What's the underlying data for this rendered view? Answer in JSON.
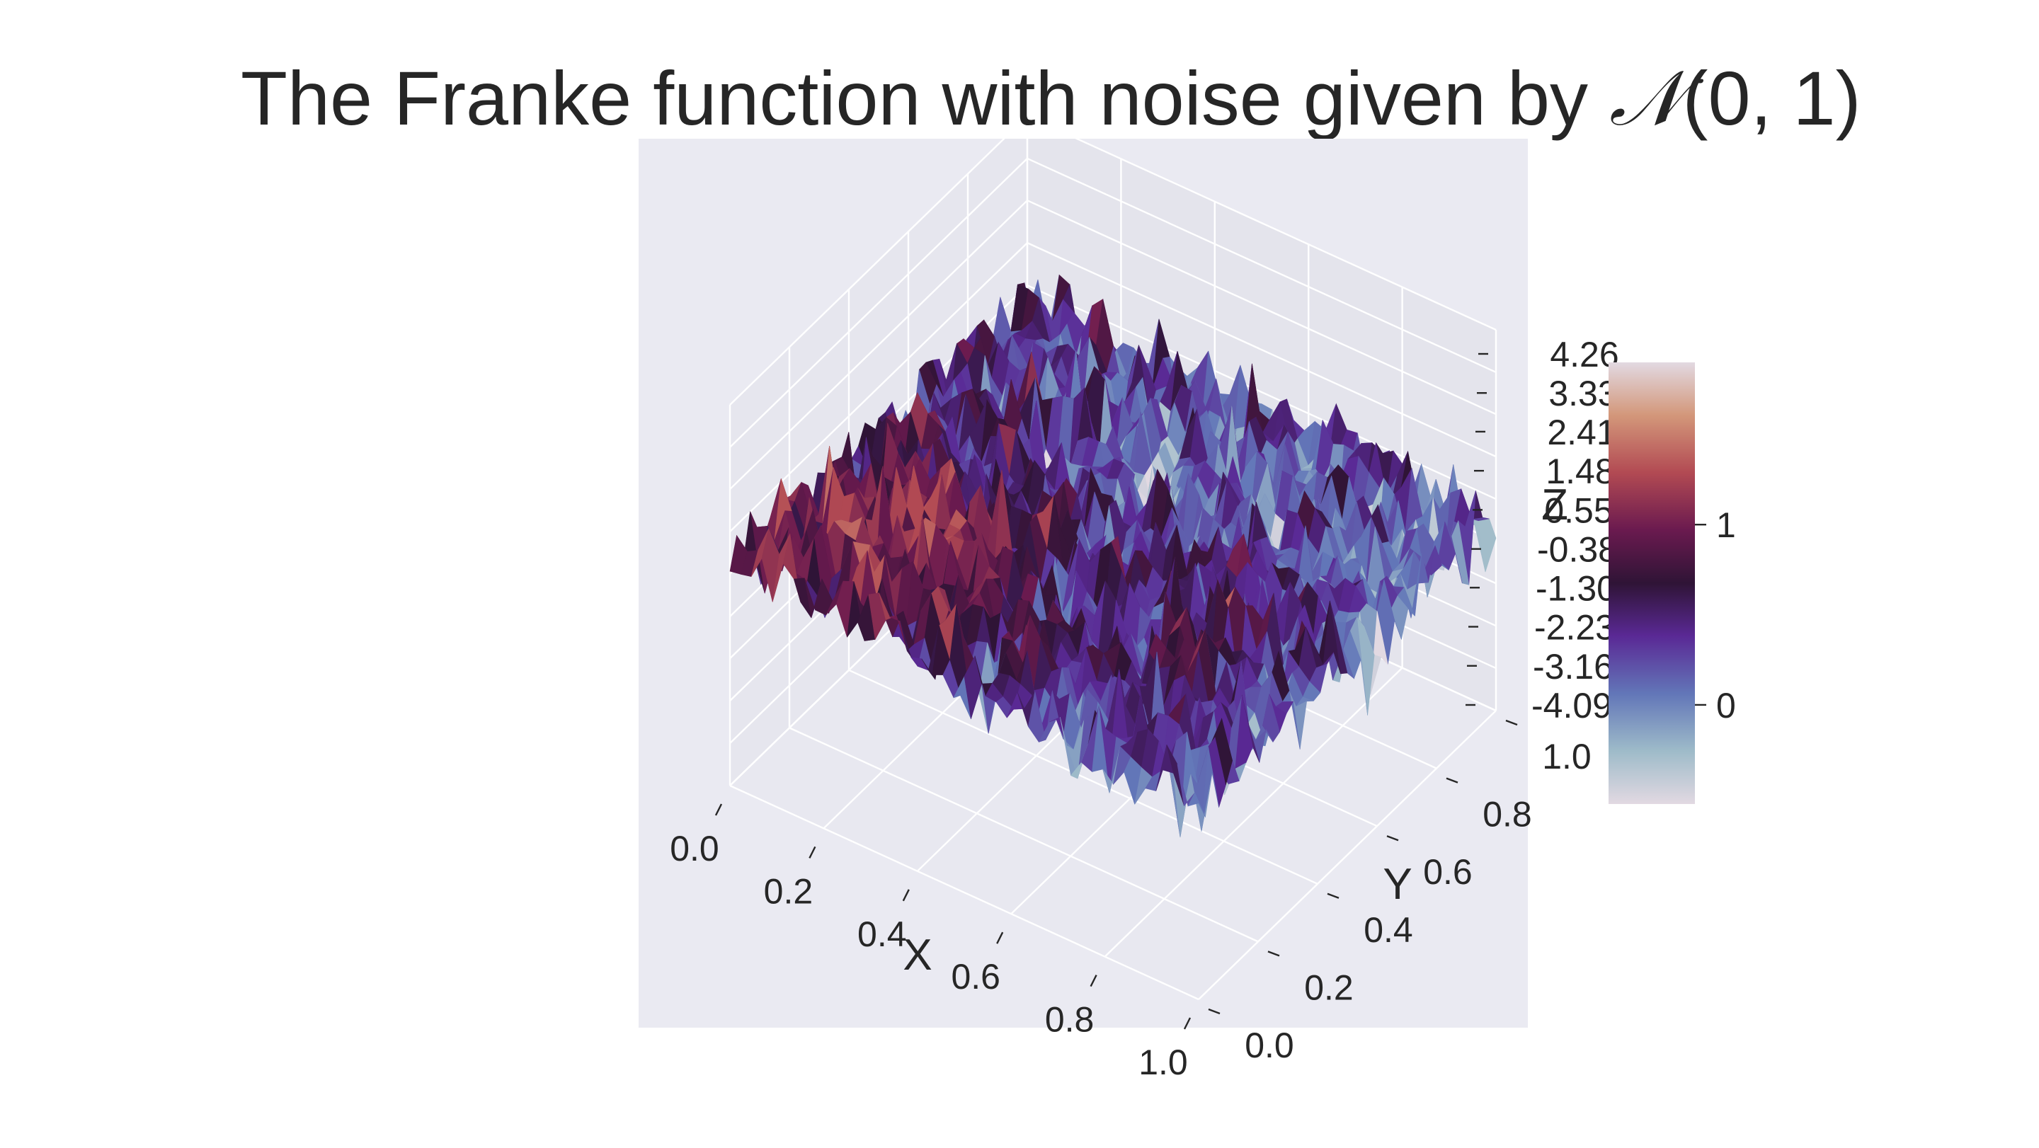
{
  "title": {
    "text": "The Franke function with noise given by ",
    "math_symbol": "𝒩",
    "math_args": "(0, 1)"
  },
  "chart_data": {
    "type": "surface3d",
    "title": "The Franke function with noise given by 𝒩(0, 1)",
    "xlabel": "X",
    "ylabel": "Y",
    "zlabel": "Z",
    "xlim": [
      0.0,
      1.0
    ],
    "ylim": [
      0.0,
      1.0
    ],
    "zlim": [
      -4.09,
      4.26
    ],
    "x_ticks": [
      "0.0",
      "0.2",
      "0.4",
      "0.6",
      "0.8",
      "1.0"
    ],
    "y_ticks": [
      "0.0",
      "0.2",
      "0.4",
      "0.6",
      "0.8",
      "1.0"
    ],
    "z_ticks": [
      "-4.09",
      "-3.16",
      "-2.23",
      "-1.30",
      "-0.38",
      "0.55",
      "1.48",
      "2.41",
      "3.33",
      "4.26"
    ],
    "colormap": "twilight_shifted",
    "colorbar": {
      "ticks": [
        "0",
        "1"
      ],
      "tick_values": [
        0,
        1
      ],
      "range": [
        -0.55,
        1.9
      ]
    },
    "noise": {
      "mean": 0,
      "std": 1
    },
    "grid": true,
    "surface": "Franke function on [0,1]x[0,1] plus N(0,1) noise"
  },
  "colors": {
    "pane": "#eaeaf2",
    "grid": "#ffffff",
    "text": "#262626"
  }
}
